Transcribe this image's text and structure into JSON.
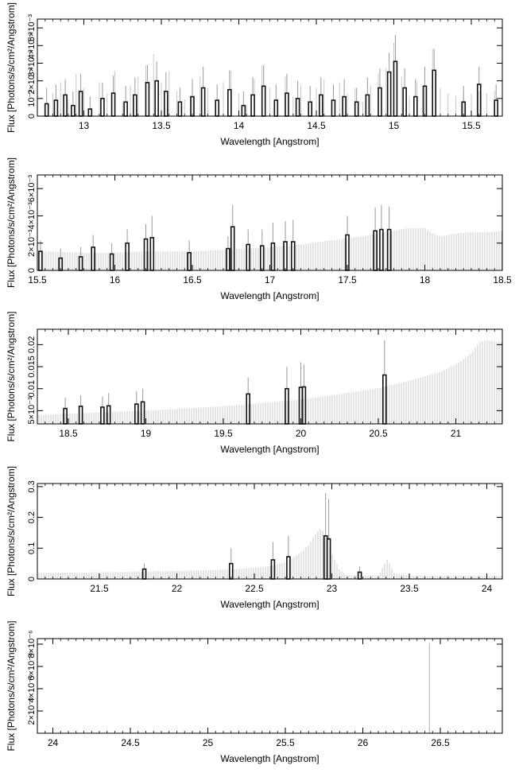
{
  "chart_data": [
    {
      "type": "bar",
      "panel": 1,
      "xlabel": "Wavelength [Angstrom]",
      "ylabel": "Flux [Photons/s/cm²/Angstrom]",
      "xlim": [
        12.7,
        15.7
      ],
      "ylim": [
        0,
        0.0055
      ],
      "xticks": [
        13,
        13.5,
        14,
        14.5,
        15,
        15.5
      ],
      "xtick_labels": [
        "13",
        "13.5",
        "14",
        "14.5",
        "15",
        "15.5"
      ],
      "yticks": [
        0,
        0.001,
        0.002,
        0.003,
        0.004,
        0.005
      ],
      "ytick_labels": [
        "0",
        "10⁻³",
        "2×10⁻³",
        "3×10⁻³",
        "4×10⁻³",
        "5×10⁻³"
      ],
      "model_bins": [
        [
          12.75,
          0.0004
        ],
        [
          12.8,
          0.0008
        ],
        [
          12.85,
          0.0012
        ],
        [
          12.9,
          0.0006
        ],
        [
          12.95,
          0.0015
        ],
        [
          13.0,
          0.001
        ],
        [
          13.05,
          0.0003
        ],
        [
          13.1,
          0.0012
        ],
        [
          13.15,
          0.0008
        ],
        [
          13.2,
          0.0016
        ],
        [
          13.25,
          0.0005
        ],
        [
          13.3,
          0.0011
        ],
        [
          13.35,
          0.0014
        ],
        [
          13.4,
          0.0018
        ],
        [
          13.45,
          0.0022
        ],
        [
          13.5,
          0.0012
        ],
        [
          13.55,
          0.0016
        ],
        [
          13.6,
          0.0009
        ],
        [
          13.65,
          0.0006
        ],
        [
          13.7,
          0.0012
        ],
        [
          13.75,
          0.0014
        ],
        [
          13.8,
          0.001
        ],
        [
          13.85,
          0.0005
        ],
        [
          13.9,
          0.0012
        ],
        [
          13.95,
          0.0016
        ],
        [
          14.0,
          0.0008
        ],
        [
          14.05,
          0.0004
        ],
        [
          14.1,
          0.0013
        ],
        [
          14.15,
          0.0018
        ],
        [
          14.2,
          0.001
        ],
        [
          14.25,
          0.0006
        ],
        [
          14.3,
          0.0014
        ],
        [
          14.35,
          0.0007
        ],
        [
          14.4,
          0.0011
        ],
        [
          14.45,
          0.0005
        ],
        [
          14.5,
          0.001
        ],
        [
          14.55,
          0.0013
        ],
        [
          14.6,
          0.0006
        ],
        [
          14.65,
          0.0012
        ],
        [
          14.7,
          0.0008
        ],
        [
          14.75,
          0.001
        ],
        [
          14.8,
          0.0005
        ],
        [
          14.85,
          0.0011
        ],
        [
          14.9,
          0.0015
        ],
        [
          14.95,
          0.0017
        ],
        [
          15.0,
          0.0026
        ],
        [
          15.05,
          0.0014
        ],
        [
          15.1,
          0.0007
        ],
        [
          15.15,
          0.0012
        ],
        [
          15.2,
          0.0016
        ],
        [
          15.25,
          0.0024
        ],
        [
          15.3,
          0.001
        ],
        [
          15.35,
          0.0008
        ],
        [
          15.4,
          0.0007
        ],
        [
          15.45,
          0.0008
        ],
        [
          15.5,
          0.0008
        ],
        [
          15.55,
          0.0009
        ],
        [
          15.6,
          0.0008
        ],
        [
          15.65,
          0.0009
        ]
      ],
      "data_bins": [
        [
          12.76,
          0.0007,
          0.0016
        ],
        [
          12.82,
          0.0009,
          0.0018
        ],
        [
          12.88,
          0.0012,
          0.0021
        ],
        [
          12.93,
          0.0006,
          0.0014
        ],
        [
          12.98,
          0.0014,
          0.0024
        ],
        [
          13.04,
          0.0004,
          0.0011
        ],
        [
          13.12,
          0.001,
          0.0019
        ],
        [
          13.19,
          0.0013,
          0.0023
        ],
        [
          13.27,
          0.0008,
          0.0017
        ],
        [
          13.33,
          0.0012,
          0.0022
        ],
        [
          13.41,
          0.0019,
          0.0029
        ],
        [
          13.47,
          0.002,
          0.0031
        ],
        [
          13.53,
          0.0014,
          0.0025
        ],
        [
          13.62,
          0.0008,
          0.0016
        ],
        [
          13.7,
          0.0011,
          0.0021
        ],
        [
          13.77,
          0.0016,
          0.0028
        ],
        [
          13.86,
          0.0009,
          0.0018
        ],
        [
          13.94,
          0.0015,
          0.0026
        ],
        [
          14.03,
          0.0006,
          0.0014
        ],
        [
          14.09,
          0.0012,
          0.0022
        ],
        [
          14.16,
          0.0017,
          0.0029
        ],
        [
          14.24,
          0.0009,
          0.0018
        ],
        [
          14.31,
          0.0013,
          0.0024
        ],
        [
          14.38,
          0.001,
          0.002
        ],
        [
          14.46,
          0.0008,
          0.0017
        ],
        [
          14.53,
          0.0012,
          0.0022
        ],
        [
          14.61,
          0.0009,
          0.0018
        ],
        [
          14.68,
          0.0011,
          0.0021
        ],
        [
          14.76,
          0.0008,
          0.0016
        ],
        [
          14.83,
          0.0012,
          0.0022
        ],
        [
          14.91,
          0.0016,
          0.0027
        ],
        [
          14.97,
          0.0025,
          0.0036
        ],
        [
          15.01,
          0.0031,
          0.0046
        ],
        [
          15.07,
          0.0016,
          0.0027
        ],
        [
          15.14,
          0.0011,
          0.0021
        ],
        [
          15.2,
          0.0017,
          0.0028
        ],
        [
          15.26,
          0.0026,
          0.0038
        ],
        [
          15.45,
          0.0008,
          0.0017
        ],
        [
          15.55,
          0.0018,
          0.0028
        ],
        [
          15.66,
          0.0009,
          0.0018
        ]
      ]
    },
    {
      "type": "bar",
      "panel": 2,
      "xlabel": "Wavelength [Angstrom]",
      "ylabel": "Flux [Photons/s/cm²/Angstrom]",
      "xlim": [
        15.5,
        18.5
      ],
      "ylim": [
        0,
        0.007
      ],
      "xticks": [
        15.5,
        16,
        16.5,
        17,
        17.5,
        18,
        18.5
      ],
      "xtick_labels": [
        "15.5",
        "16",
        "16.5",
        "17",
        "17.5",
        "18",
        "18.5"
      ],
      "yticks": [
        0,
        0.002,
        0.004,
        0.006
      ],
      "ytick_labels": [
        "0",
        "2×10⁻³",
        "4×10⁻³",
        "6×10⁻³"
      ],
      "model_curve": [
        [
          15.5,
          0.0014
        ],
        [
          15.8,
          0.0013
        ],
        [
          16.0,
          0.0013
        ],
        [
          16.2,
          0.0014
        ],
        [
          16.5,
          0.0014
        ],
        [
          16.7,
          0.0015
        ],
        [
          17.0,
          0.0017
        ],
        [
          17.2,
          0.0019
        ],
        [
          17.4,
          0.0022
        ],
        [
          17.6,
          0.0025
        ],
        [
          17.7,
          0.0027
        ],
        [
          17.8,
          0.0029
        ],
        [
          17.9,
          0.0031
        ],
        [
          18.0,
          0.0031
        ],
        [
          18.05,
          0.0027
        ],
        [
          18.1,
          0.0025
        ],
        [
          18.2,
          0.0027
        ],
        [
          18.3,
          0.0028
        ],
        [
          18.4,
          0.0028
        ],
        [
          18.5,
          0.0029
        ]
      ],
      "data_bins": [
        [
          15.52,
          0.0014,
          0.0022
        ],
        [
          15.65,
          0.0009,
          0.0016
        ],
        [
          15.78,
          0.001,
          0.0017
        ],
        [
          15.86,
          0.0017,
          0.0026
        ],
        [
          15.98,
          0.0012,
          0.002
        ],
        [
          16.08,
          0.002,
          0.003
        ],
        [
          16.2,
          0.0023,
          0.0034
        ],
        [
          16.24,
          0.0024,
          0.004
        ],
        [
          16.48,
          0.0013,
          0.0022
        ],
        [
          16.73,
          0.0016,
          0.0025
        ],
        [
          16.76,
          0.0032,
          0.0048
        ],
        [
          16.86,
          0.0019,
          0.003
        ],
        [
          16.95,
          0.0018,
          0.003
        ],
        [
          17.02,
          0.002,
          0.0035
        ],
        [
          17.1,
          0.0021,
          0.0036
        ],
        [
          17.15,
          0.0021,
          0.0037
        ],
        [
          17.5,
          0.0026,
          0.004
        ],
        [
          17.68,
          0.0029,
          0.0046
        ],
        [
          17.72,
          0.003,
          0.0048
        ],
        [
          17.77,
          0.003,
          0.0047
        ]
      ]
    },
    {
      "type": "bar",
      "panel": 3,
      "xlabel": "Wavelength [Angstrom]",
      "ylabel": "Flux [Photons/s/cm²/Angstrom]",
      "xlim": [
        18.3,
        21.3
      ],
      "ylim": [
        0.002,
        0.0235
      ],
      "xticks": [
        18.5,
        19,
        19.5,
        20,
        20.5,
        21
      ],
      "xtick_labels": [
        "18.5",
        "19",
        "19.5",
        "20",
        "20.5",
        "21"
      ],
      "yticks": [
        0.005,
        0.01,
        0.015,
        0.02
      ],
      "ytick_labels": [
        "5×10⁻³",
        "0.01",
        "0.015",
        "0.02"
      ],
      "model_curve": [
        [
          18.3,
          0.004
        ],
        [
          18.5,
          0.0043
        ],
        [
          18.7,
          0.0046
        ],
        [
          18.9,
          0.0049
        ],
        [
          19.1,
          0.0052
        ],
        [
          19.3,
          0.0056
        ],
        [
          19.5,
          0.006
        ],
        [
          19.7,
          0.0066
        ],
        [
          19.9,
          0.0072
        ],
        [
          20.1,
          0.008
        ],
        [
          20.3,
          0.009
        ],
        [
          20.5,
          0.0101
        ],
        [
          20.7,
          0.0118
        ],
        [
          20.9,
          0.0138
        ],
        [
          21.0,
          0.0155
        ],
        [
          21.1,
          0.018
        ],
        [
          21.15,
          0.0205
        ],
        [
          21.2,
          0.021
        ],
        [
          21.3,
          0.0205
        ]
      ],
      "data_bins": [
        [
          18.48,
          0.0055,
          0.008
        ],
        [
          18.58,
          0.006,
          0.0085
        ],
        [
          18.72,
          0.0058,
          0.0082
        ],
        [
          18.76,
          0.0061,
          0.009
        ],
        [
          18.94,
          0.0065,
          0.0095
        ],
        [
          18.98,
          0.007,
          0.01
        ],
        [
          19.66,
          0.0088,
          0.0125
        ],
        [
          19.91,
          0.01,
          0.015
        ],
        [
          20.0,
          0.0103,
          0.016
        ],
        [
          20.02,
          0.0104,
          0.0155
        ],
        [
          20.54,
          0.0131,
          0.021
        ]
      ]
    },
    {
      "type": "bar",
      "panel": 4,
      "xlabel": "Wavelength [Angstrom]",
      "ylabel": "Flux [Photons/s/cm²/Angstrom]",
      "xlim": [
        21.1,
        24.1
      ],
      "ylim": [
        0,
        0.31
      ],
      "xticks": [
        21.5,
        22,
        22.5,
        23,
        23.5,
        24
      ],
      "xtick_labels": [
        "21.5",
        "22",
        "22.5",
        "23",
        "23.5",
        "24"
      ],
      "yticks": [
        0,
        0.1,
        0.2,
        0.3
      ],
      "ytick_labels": [
        "0",
        "0.1",
        "0.2",
        "0.3"
      ],
      "model_curve": [
        [
          21.1,
          0.02
        ],
        [
          21.4,
          0.021
        ],
        [
          21.7,
          0.023
        ],
        [
          22.0,
          0.026
        ],
        [
          22.3,
          0.03
        ],
        [
          22.5,
          0.036
        ],
        [
          22.6,
          0.042
        ],
        [
          22.7,
          0.055
        ],
        [
          22.8,
          0.085
        ],
        [
          22.85,
          0.11
        ],
        [
          22.9,
          0.15
        ],
        [
          22.93,
          0.165
        ],
        [
          22.96,
          0.14
        ],
        [
          23.0,
          0.08
        ],
        [
          23.05,
          0.03
        ],
        [
          23.1,
          0.012
        ],
        [
          23.2,
          0.01
        ],
        [
          23.3,
          0.012
        ],
        [
          23.33,
          0.04
        ],
        [
          23.36,
          0.065
        ],
        [
          23.4,
          0.02
        ],
        [
          23.5,
          0.01
        ],
        [
          23.8,
          0.01
        ],
        [
          24.1,
          0.01
        ]
      ],
      "data_bins": [
        [
          21.79,
          0.032,
          0.05
        ],
        [
          22.35,
          0.05,
          0.1
        ],
        [
          22.62,
          0.062,
          0.12
        ],
        [
          22.72,
          0.072,
          0.14
        ],
        [
          22.96,
          0.14,
          0.28
        ],
        [
          22.98,
          0.13,
          0.26
        ],
        [
          23.18,
          0.022,
          0.04
        ]
      ]
    },
    {
      "type": "bar",
      "panel": 5,
      "xlabel": "Wavelength [Angstrom]",
      "ylabel": "Flux [Photons/s/cm²/Angstrom]",
      "xlim": [
        23.9,
        26.9
      ],
      "ylim": [
        0,
        8.5e-06
      ],
      "xticks": [
        24,
        24.5,
        25,
        25.5,
        26,
        26.5
      ],
      "xtick_labels": [
        "24",
        "24.5",
        "25",
        "25.5",
        "26",
        "26.5"
      ],
      "yticks": [
        2e-06,
        4e-06,
        6e-06,
        8e-06
      ],
      "ytick_labels": [
        "2×10⁻⁶",
        "4×10⁻⁶",
        "6×10⁻⁶",
        "8×10⁻⁶"
      ],
      "spike": [
        26.43,
        8.1e-06
      ]
    }
  ]
}
